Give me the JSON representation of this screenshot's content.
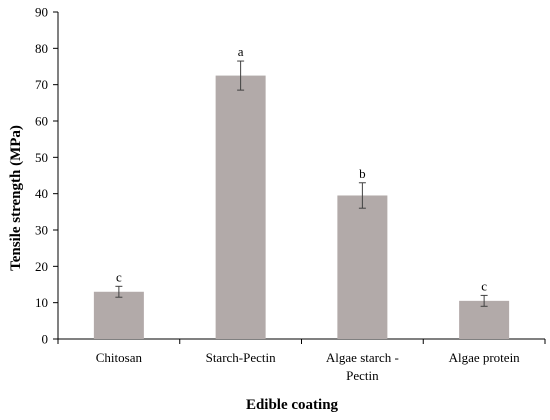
{
  "chart_data": {
    "type": "bar",
    "title": "",
    "xlabel": "Edible coating",
    "ylabel": "Tensile strength (MPa)",
    "ylim": [
      0,
      90
    ],
    "yticks": [
      0,
      10,
      20,
      30,
      40,
      50,
      60,
      70,
      80,
      90
    ],
    "categories": [
      [
        "Chitosan"
      ],
      [
        "Starch-Pectin"
      ],
      [
        "Algae starch -",
        "Pectin"
      ],
      [
        "Algae protein"
      ]
    ],
    "values": [
      13.0,
      72.5,
      39.5,
      10.5
    ],
    "errors": [
      1.5,
      4.0,
      3.5,
      1.5
    ],
    "significance": [
      "c",
      "a",
      "b",
      "c"
    ],
    "grid": false,
    "legend": false,
    "colors": {
      "bar": "#b2aaa9",
      "axis": "#000000",
      "error_bar": "#404040"
    }
  }
}
